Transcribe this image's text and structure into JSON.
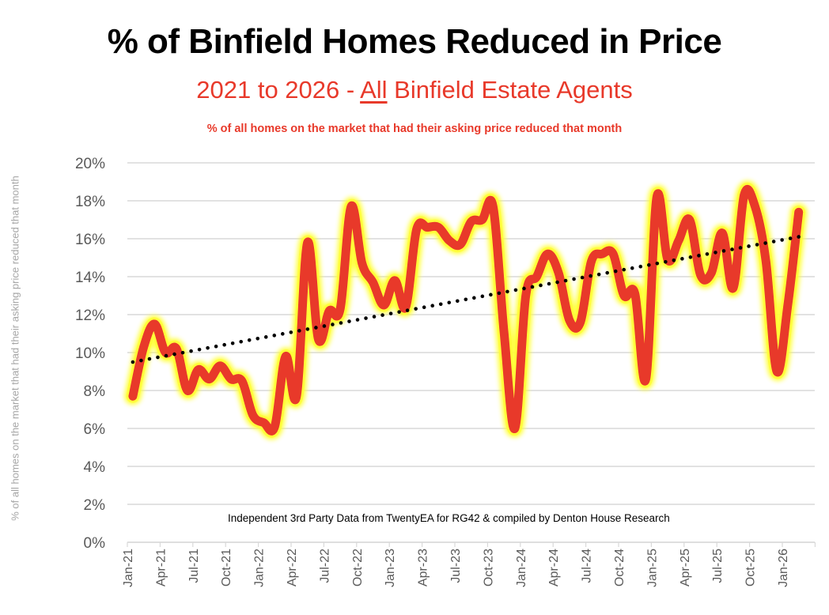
{
  "chart_data": {
    "type": "line",
    "title": "% of Binfield Homes Reduced in Price",
    "subtitle_prefix": "2021 to 2026 - ",
    "subtitle_emphasis": "All",
    "subtitle_suffix": " Binfield Estate Agents",
    "description": "% of all homes on the market that had their asking price reduced that month",
    "ylabel": "% of all homes on the market that had their asking price reduced that month",
    "xlabel": "",
    "ylim": [
      0,
      20
    ],
    "y_ticks": [
      "0%",
      "2%",
      "4%",
      "6%",
      "8%",
      "10%",
      "12%",
      "14%",
      "16%",
      "18%",
      "20%"
    ],
    "x_tick_labels": [
      "Jan-21",
      "Apr-21",
      "Jul-21",
      "Oct-21",
      "Jan-22",
      "Apr-22",
      "Jul-22",
      "Oct-22",
      "Jan-23",
      "Apr-23",
      "Jul-23",
      "Oct-23",
      "Jan-24",
      "Apr-24",
      "Jul-24",
      "Oct-24",
      "Jan-25",
      "Apr-25",
      "Jul-25",
      "Oct-25",
      "Jan-26"
    ],
    "grid": true,
    "annotation": "Independent 3rd Party Data from TwentyEA for RG42 & compiled by Denton House Research",
    "categories": [
      "Jan-21",
      "Feb-21",
      "Mar-21",
      "Apr-21",
      "May-21",
      "Jun-21",
      "Jul-21",
      "Aug-21",
      "Sep-21",
      "Oct-21",
      "Nov-21",
      "Dec-21",
      "Jan-22",
      "Feb-22",
      "Mar-22",
      "Apr-22",
      "May-22",
      "Jun-22",
      "Jul-22",
      "Aug-22",
      "Sep-22",
      "Oct-22",
      "Nov-22",
      "Dec-22",
      "Jan-23",
      "Feb-23",
      "Mar-23",
      "Apr-23",
      "May-23",
      "Jun-23",
      "Jul-23",
      "Aug-23",
      "Sep-23",
      "Oct-23",
      "Nov-23",
      "Dec-23",
      "Jan-24",
      "Feb-24",
      "Mar-24",
      "Apr-24",
      "May-24",
      "Jun-24",
      "Jul-24",
      "Aug-24",
      "Sep-24",
      "Oct-24",
      "Nov-24",
      "Dec-24",
      "Jan-25",
      "Feb-25",
      "Mar-25",
      "Apr-25",
      "May-25",
      "Jun-25",
      "Jul-25",
      "Aug-25",
      "Sep-25",
      "Oct-25",
      "Nov-25",
      "Dec-25",
      "Jan-26",
      "Feb-26"
    ],
    "series": [
      {
        "name": "% reduced",
        "color": "#e8392a",
        "glow": "#ffff33",
        "values": [
          7.7,
          10.3,
          11.5,
          10.0,
          10.2,
          8.0,
          9.1,
          8.6,
          9.3,
          8.6,
          8.5,
          6.7,
          6.3,
          6.1,
          9.8,
          7.7,
          15.8,
          10.7,
          12.2,
          12.3,
          17.7,
          14.7,
          13.7,
          12.5,
          13.8,
          12.4,
          16.5,
          16.6,
          16.6,
          15.9,
          15.7,
          16.9,
          17.0,
          17.7,
          11.1,
          6.0,
          13.0,
          14.0,
          15.2,
          14.2,
          11.7,
          11.6,
          14.8,
          15.2,
          15.2,
          13.0,
          13.1,
          8.6,
          18.2,
          14.9,
          15.9,
          17.0,
          14.1,
          14.2,
          16.3,
          13.4,
          18.3,
          17.7,
          14.8,
          9.0,
          12.5,
          17.4
        ]
      }
    ],
    "trendline": {
      "type": "linear",
      "style": "dotted",
      "color": "#000000",
      "start_value": 9.5,
      "end_value": 16.1
    }
  }
}
